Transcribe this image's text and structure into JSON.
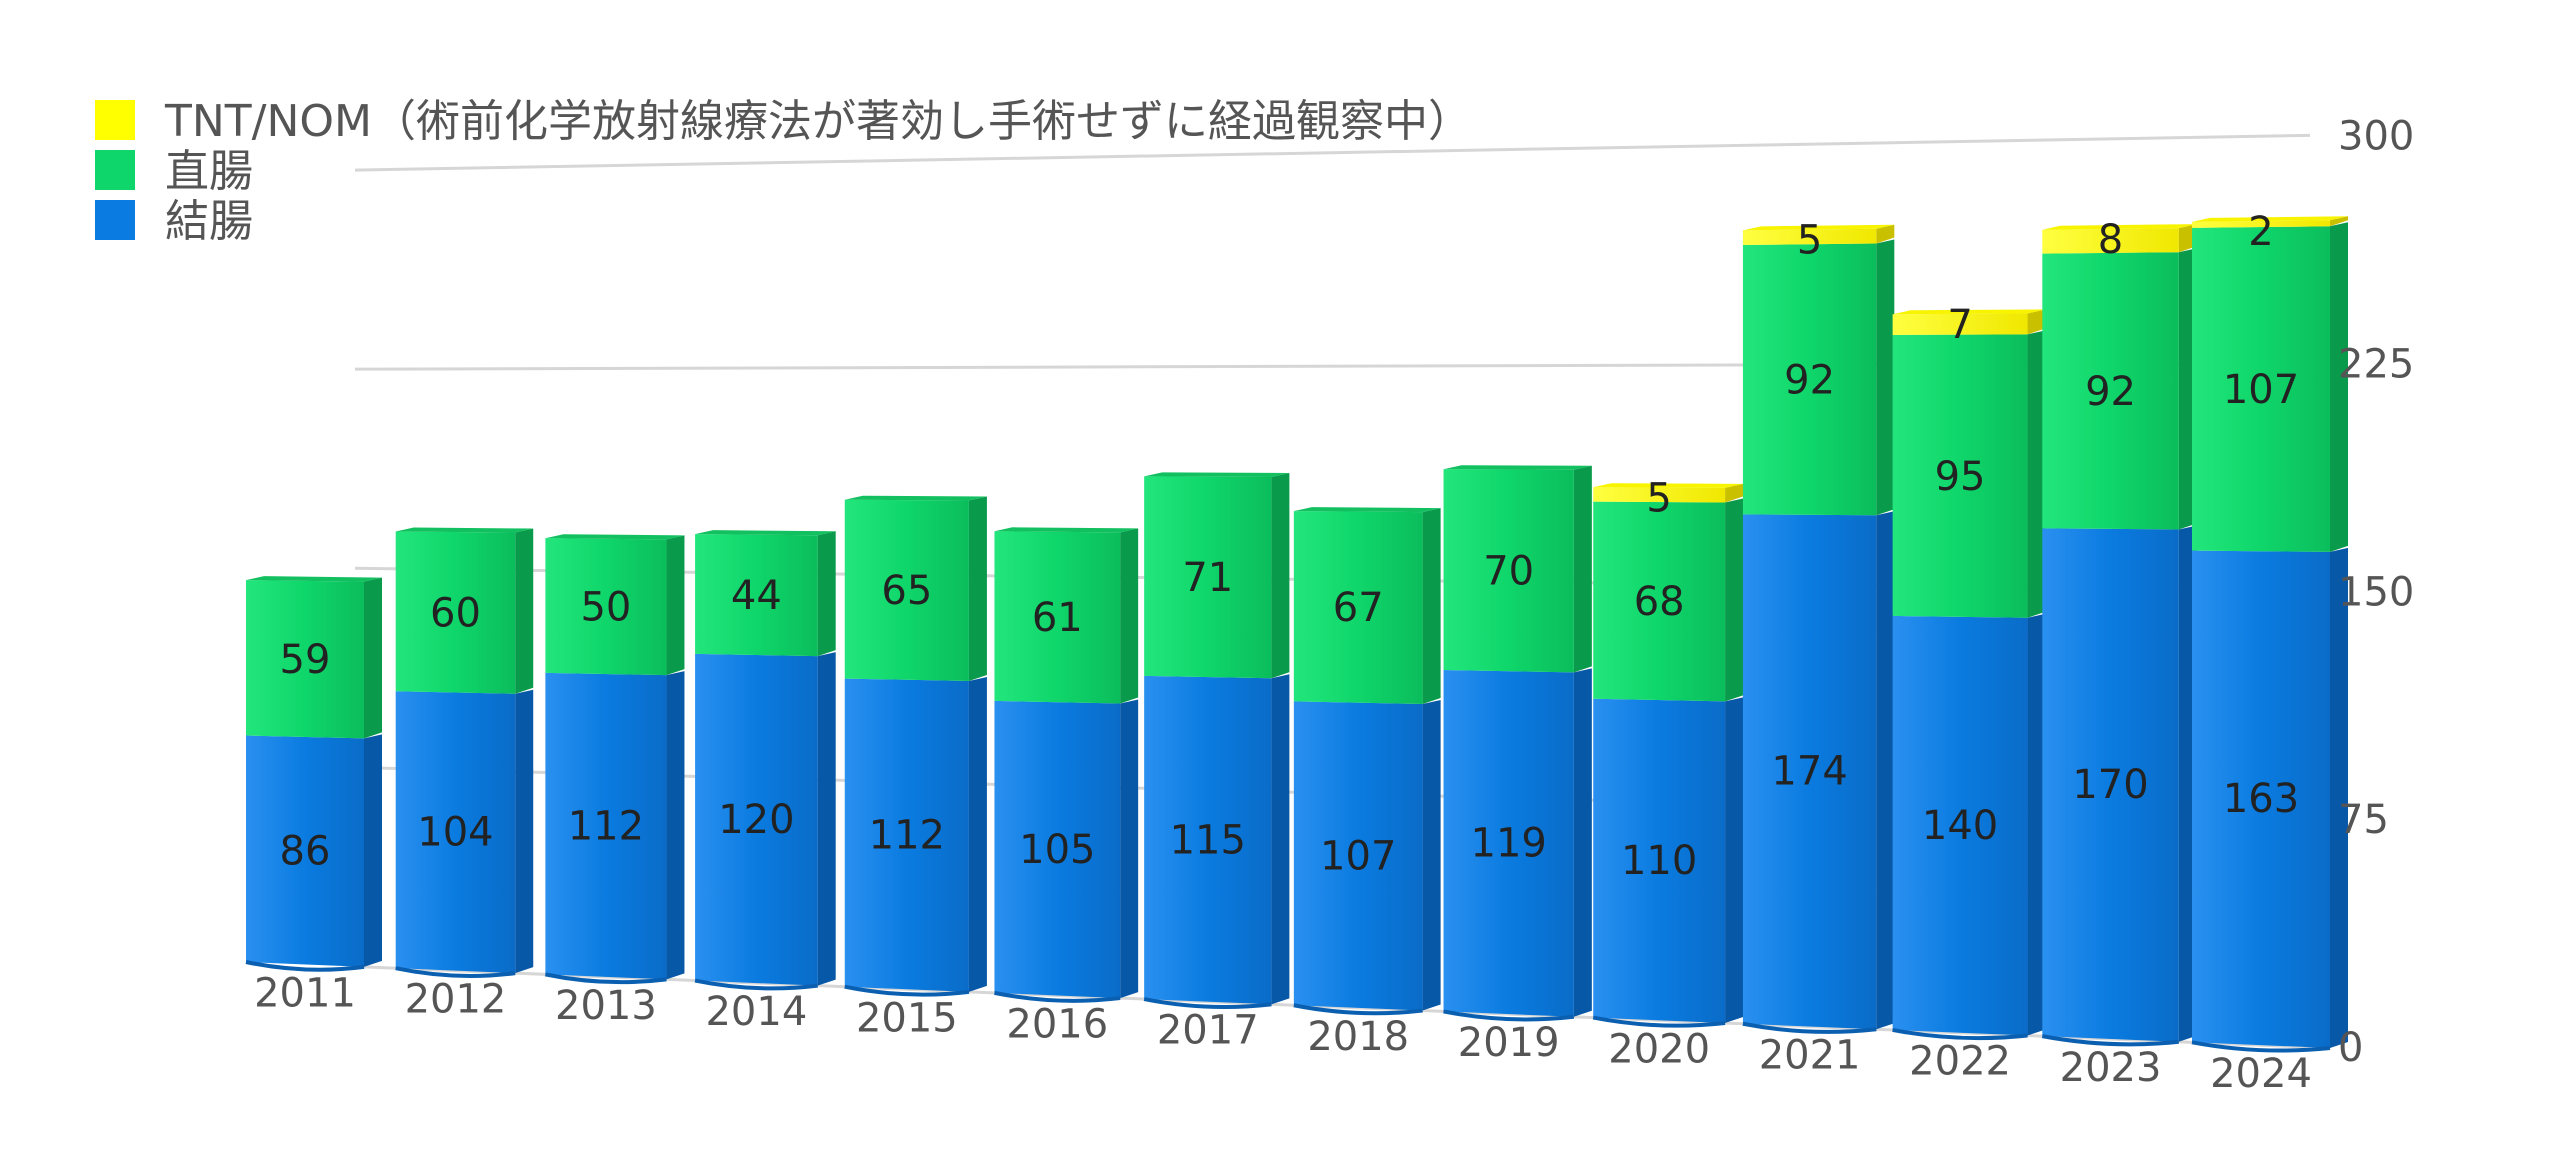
{
  "chart_data": {
    "type": "bar",
    "stacked": true,
    "categories": [
      "2011",
      "2012",
      "2013",
      "2014",
      "2015",
      "2016",
      "2017",
      "2018",
      "2019",
      "2020",
      "2021",
      "2022",
      "2023",
      "2024"
    ],
    "series": [
      {
        "name": "結腸",
        "color": "#0a7be0",
        "values": [
          86,
          104,
          112,
          120,
          112,
          105,
          115,
          107,
          119,
          110,
          174,
          140,
          170,
          163
        ]
      },
      {
        "name": "直腸",
        "color": "#0fd66a",
        "values": [
          59,
          60,
          50,
          44,
          65,
          61,
          71,
          67,
          70,
          68,
          92,
          95,
          92,
          107
        ]
      },
      {
        "name": "TNT/NOM（術前化学放射線療法が著効し手術せずに経過観察中）",
        "color": "#ffff00",
        "values": [
          0,
          0,
          0,
          0,
          0,
          0,
          0,
          0,
          0,
          5,
          5,
          7,
          8,
          2
        ]
      }
    ],
    "yticks": [
      0,
      75,
      150,
      225,
      300
    ],
    "ylim": [
      0,
      300
    ],
    "y_axis_position": "right",
    "grid": true,
    "legend_position": "top-left"
  }
}
